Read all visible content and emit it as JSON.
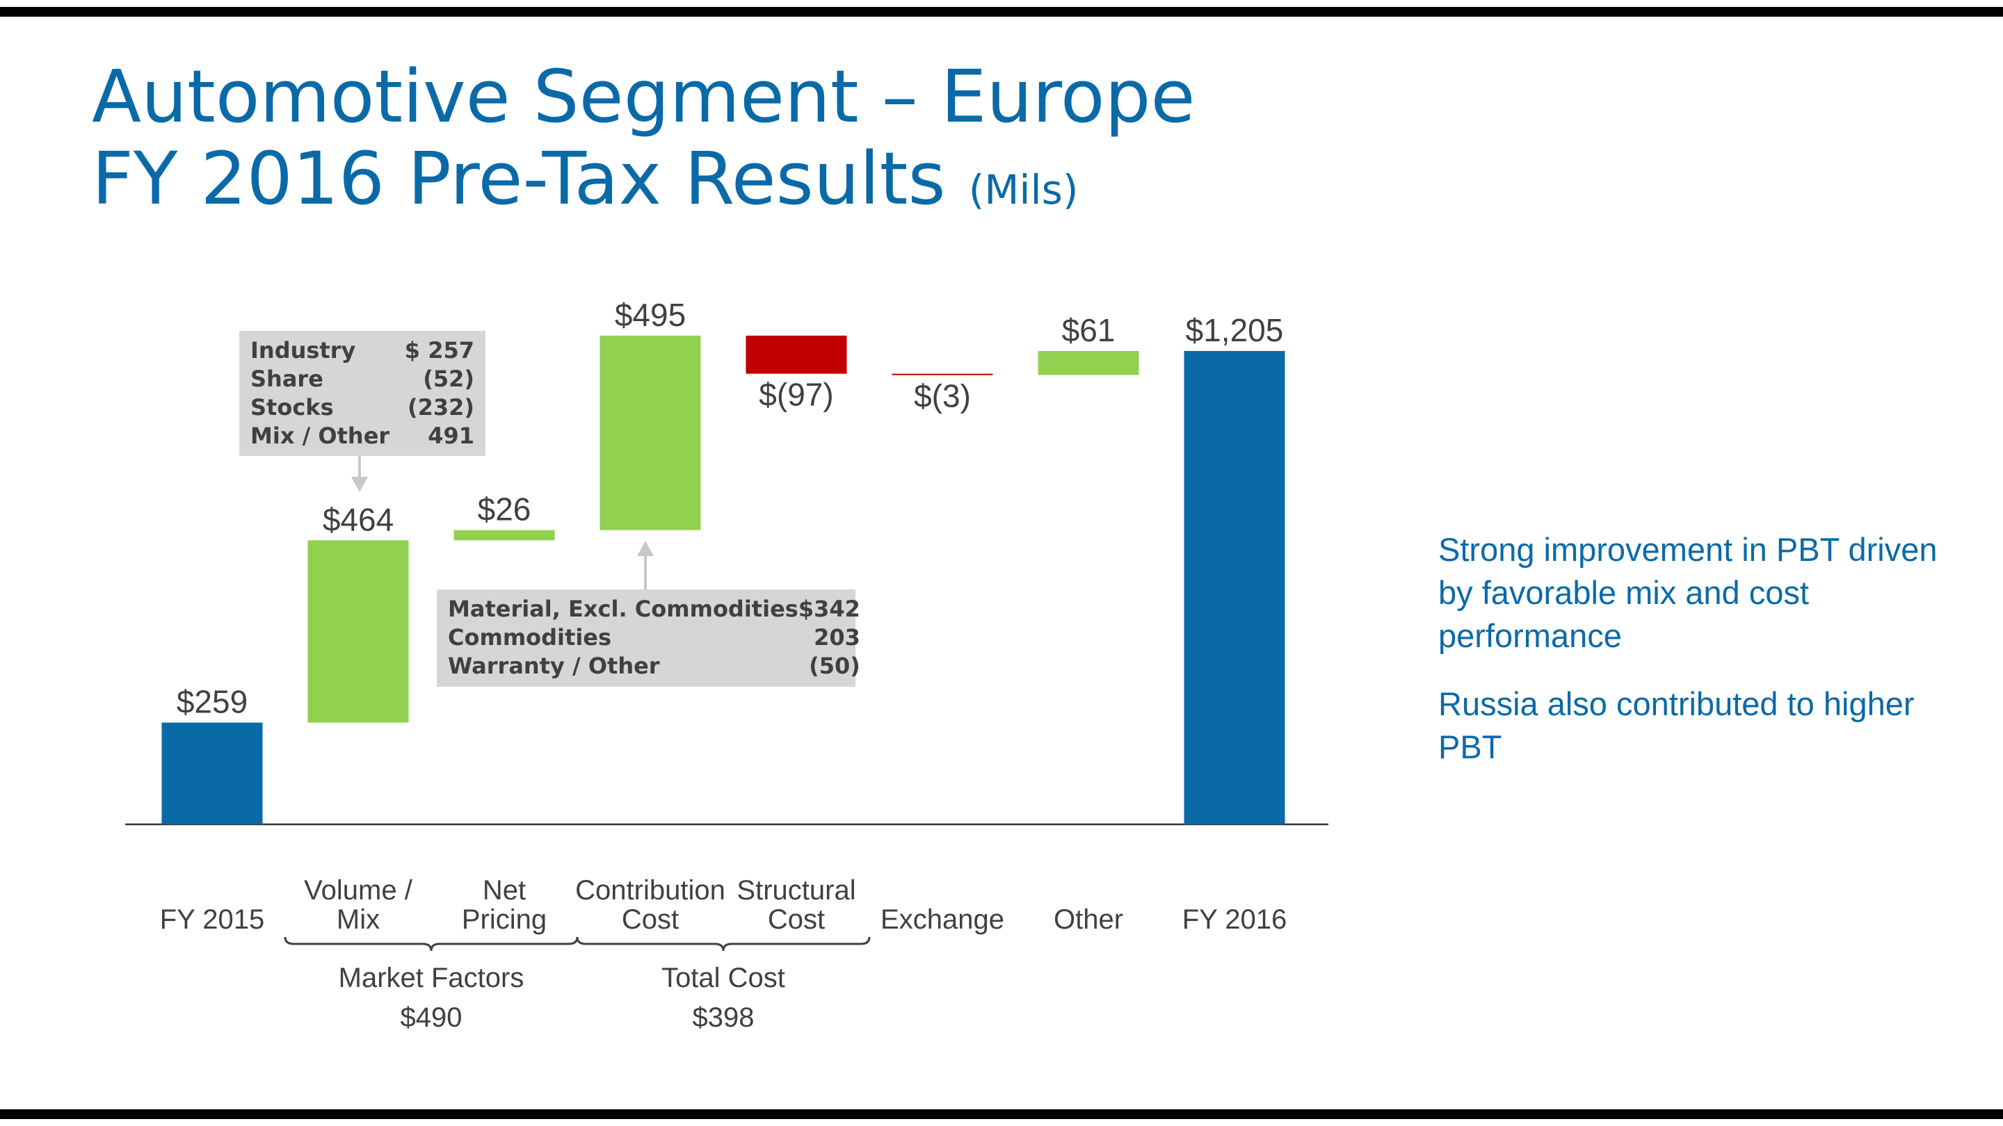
{
  "slide": {
    "title_line1": "Automotive Segment – Europe",
    "title_line2": "FY 2016 Pre-Tax Results",
    "title_unit": "(Mils)"
  },
  "chart_data": {
    "type": "bar",
    "subtype": "waterfall",
    "categories": [
      "FY 2015",
      "Volume / Mix",
      "Net Pricing",
      "Contribution Cost",
      "Structural Cost",
      "Exchange",
      "Other",
      "FY 2016"
    ],
    "category_lines": [
      [
        "FY 2015"
      ],
      [
        "Volume /",
        "Mix"
      ],
      [
        "Net",
        "Pricing"
      ],
      [
        "Contribution",
        "Cost"
      ],
      [
        "Structural",
        "Cost"
      ],
      [
        "Exchange"
      ],
      [
        "Other"
      ],
      [
        "FY 2016"
      ]
    ],
    "values": [
      259,
      464,
      26,
      495,
      -97,
      -3,
      61,
      1205
    ],
    "bar_kinds": [
      "total",
      "increase",
      "increase",
      "increase",
      "decrease",
      "decrease",
      "increase",
      "total"
    ],
    "value_labels": [
      "$259",
      "$464",
      "$26",
      "$495",
      "$(97)",
      "$(3)",
      "$61",
      "$1,205"
    ],
    "colors": {
      "total": "#0a6aa8",
      "increase": "#92d050",
      "decrease": "#c00000"
    },
    "ylim": [
      0,
      1300
    ],
    "groups": [
      {
        "label": "Market Factors",
        "value": "$490",
        "categories": [
          "Volume / Mix",
          "Net Pricing"
        ]
      },
      {
        "label": "Total Cost",
        "value": "$398",
        "categories": [
          "Contribution Cost",
          "Structural Cost"
        ]
      }
    ],
    "annotations": {
      "market_factors_detail": [
        {
          "label": "Industry",
          "value": "$ 257"
        },
        {
          "label": "Share",
          "value": "(52)"
        },
        {
          "label": "Stocks",
          "value": "(232)"
        },
        {
          "label": "Mix / Other",
          "value": "491"
        }
      ],
      "contribution_cost_detail": [
        {
          "label": "Material, Excl. Commodities",
          "value": "$342"
        },
        {
          "label": "Commodities",
          "value": "203"
        },
        {
          "label": "Warranty / Other",
          "value": "(50)"
        }
      ]
    }
  },
  "commentary": [
    "Strong improvement in PBT driven by favorable mix and cost performance",
    "Russia also contributed to higher PBT"
  ]
}
